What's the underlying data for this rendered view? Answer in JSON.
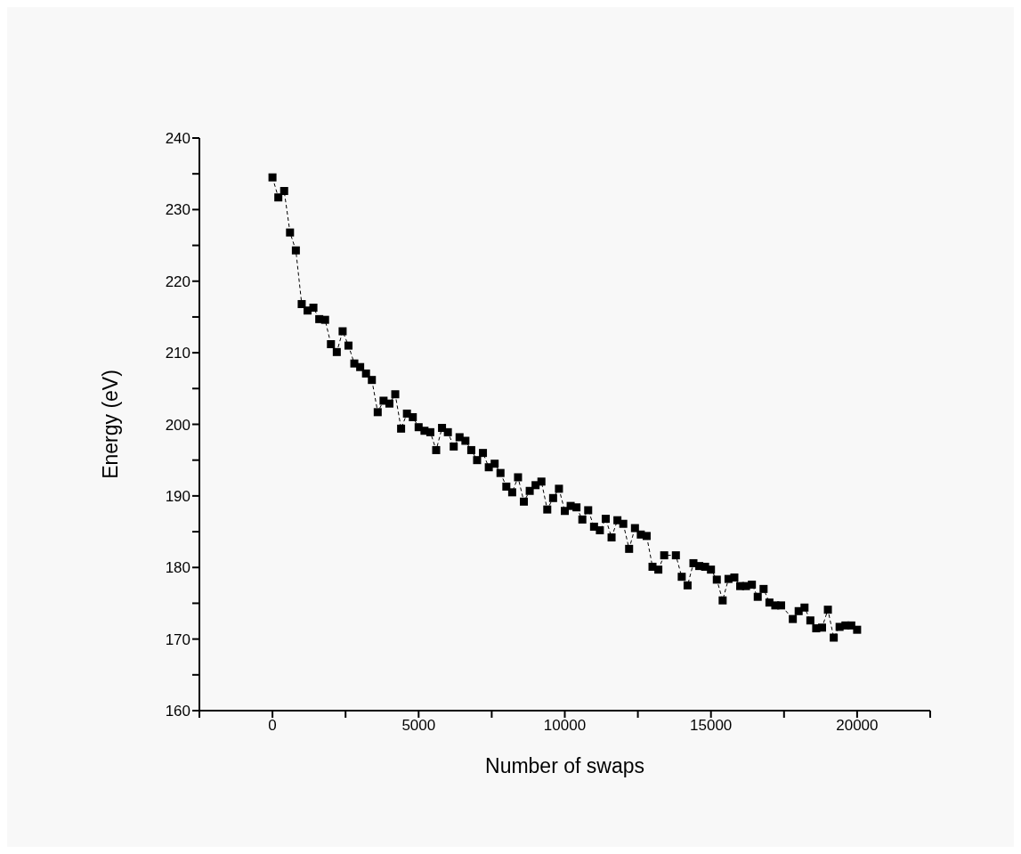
{
  "chart_data": {
    "type": "line",
    "xlabel": "Number of swaps",
    "ylabel": "Energy (eV)",
    "x": [
      0,
      200,
      400,
      600,
      800,
      1000,
      1200,
      1400,
      1600,
      1800,
      2000,
      2200,
      2400,
      2600,
      2800,
      3000,
      3200,
      3400,
      3600,
      3800,
      4000,
      4200,
      4400,
      4600,
      4800,
      5000,
      5200,
      5400,
      5600,
      5800,
      6000,
      6200,
      6400,
      6600,
      6800,
      7000,
      7200,
      7400,
      7600,
      7800,
      8000,
      8200,
      8400,
      8600,
      8800,
      9000,
      9200,
      9400,
      9600,
      9800,
      10000,
      10200,
      10400,
      10600,
      10800,
      11000,
      11200,
      11400,
      11600,
      11800,
      12000,
      12200,
      12400,
      12600,
      12800,
      13000,
      13200,
      13400,
      13800,
      14000,
      14200,
      14400,
      14600,
      14800,
      15000,
      15200,
      15400,
      15600,
      15800,
      16000,
      16200,
      16400,
      16600,
      16800,
      17000,
      17200,
      17400,
      17800,
      18000,
      18200,
      18400,
      18600,
      18800,
      19000,
      19200,
      19400,
      19600,
      19800,
      20000
    ],
    "series": [
      {
        "color": "#000000",
        "values": [
          234.5,
          231.7,
          232.6,
          226.8,
          224.3,
          216.8,
          215.9,
          216.3,
          214.7,
          214.6,
          211.2,
          210.1,
          213.0,
          211.0,
          208.5,
          208.0,
          207.1,
          206.2,
          201.7,
          203.3,
          202.9,
          204.2,
          199.4,
          201.5,
          201.0,
          199.6,
          199.1,
          198.9,
          196.4,
          199.5,
          198.9,
          196.9,
          198.2,
          197.7,
          196.4,
          195.0,
          196.0,
          194.0,
          194.5,
          193.2,
          191.3,
          190.5,
          192.6,
          189.2,
          190.7,
          191.5,
          192.0,
          188.1,
          189.7,
          191.0,
          187.9,
          188.6,
          188.4,
          186.7,
          188.0,
          185.7,
          185.2,
          186.8,
          184.2,
          186.6,
          186.1,
          182.6,
          185.5,
          184.6,
          184.4,
          180.1,
          179.7,
          181.7,
          181.7,
          178.7,
          177.5,
          180.6,
          180.2,
          180.1,
          179.7,
          178.3,
          175.4,
          178.4,
          178.6,
          177.4,
          177.4,
          177.6,
          175.9,
          177.0,
          175.1,
          174.7,
          174.7,
          172.8,
          173.9,
          174.4,
          172.6,
          171.5,
          171.6,
          174.1,
          170.2,
          171.7,
          171.9,
          171.9,
          171.3
        ]
      }
    ],
    "xlim": [
      -2500,
      22500
    ],
    "xticks": [
      {
        "value": -2500,
        "label": null
      },
      0,
      {
        "value": 2500,
        "label": null
      },
      5000,
      {
        "value": 7500,
        "label": null
      },
      10000,
      {
        "value": 12500,
        "label": null
      },
      15000,
      {
        "value": 17500,
        "label": null
      },
      20000,
      {
        "value": 22500,
        "label": null
      }
    ],
    "ylim": [
      160,
      240
    ],
    "yticks": [
      160,
      {
        "value": 165,
        "label": null
      },
      170,
      {
        "value": 175,
        "label": null
      },
      180,
      {
        "value": 185,
        "label": null
      },
      190,
      {
        "value": 195,
        "label": null
      },
      200,
      {
        "value": 205,
        "label": null
      },
      210,
      {
        "value": 215,
        "label": null
      },
      220,
      {
        "value": 225,
        "label": null
      },
      230,
      {
        "value": 235,
        "label": null
      },
      240
    ],
    "grid": false,
    "legend": false,
    "marker": "square",
    "line_style": "dashed"
  }
}
